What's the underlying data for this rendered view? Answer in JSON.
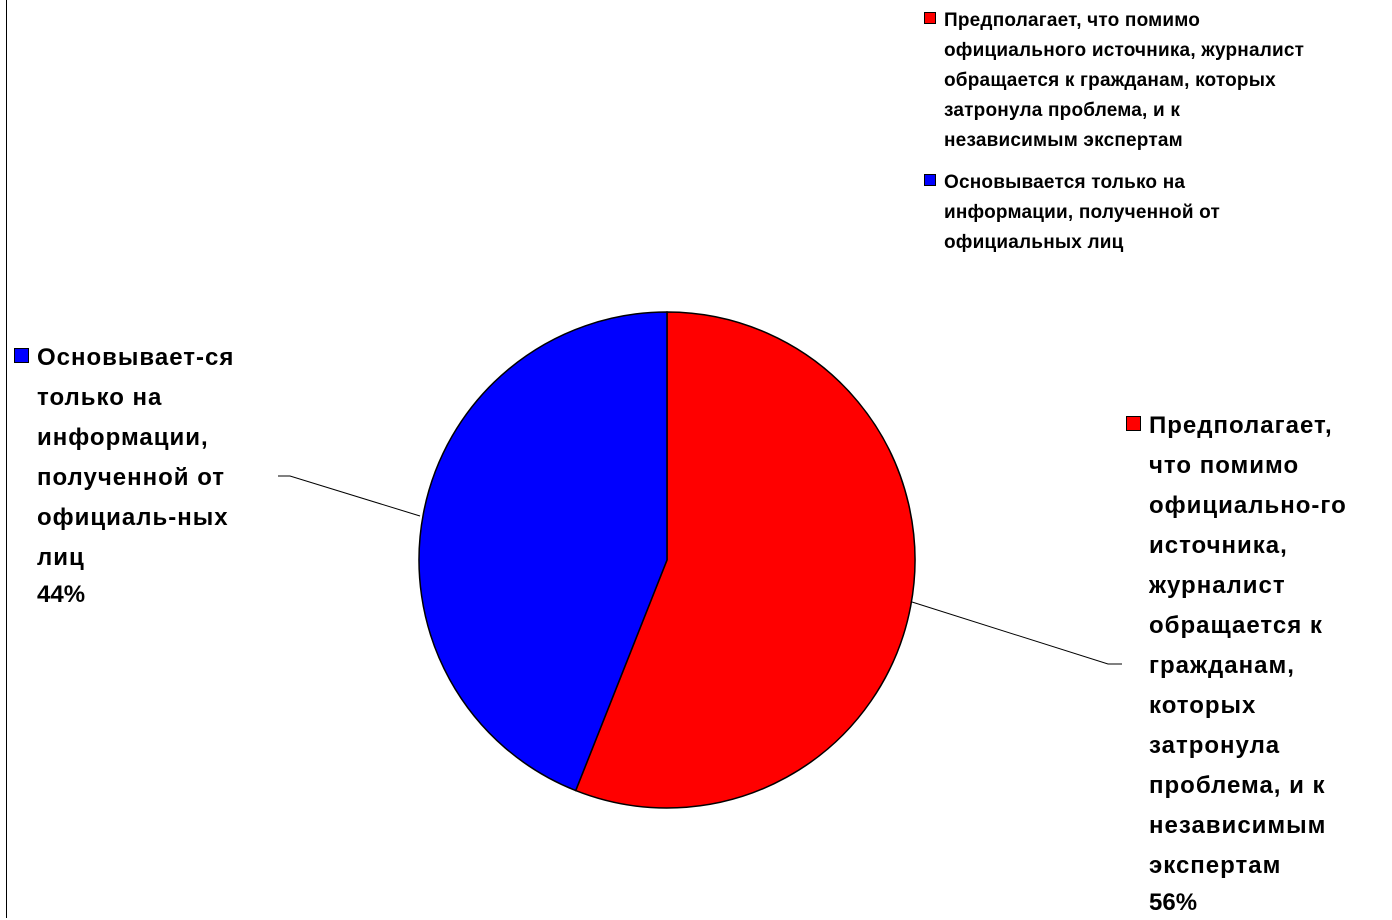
{
  "chart_data": {
    "type": "pie",
    "title": "",
    "slices": [
      {
        "name": "Предполагает, что помимо официального источника, журналист обращается к гражданам, которых затронула проблема, и к независимым экспертам",
        "value": 56,
        "color": "#ff0000",
        "data_label_lines": [
          "Предполагает,",
          "что помимо",
          "официально-го",
          "источника,",
          "журналист",
          "обращается к",
          "гражданам,",
          "которых",
          "затронула",
          "проблема, и к",
          "независимым",
          "экспертам"
        ],
        "percent_label": "56%"
      },
      {
        "name": "Основывается только на информации, полученной от официальных лиц",
        "value": 44,
        "color": "#0000ff",
        "data_label_lines": [
          "Основывает-ся",
          "только на",
          "информации,",
          "полученной от",
          "официаль-ных",
          "лиц"
        ],
        "percent_label": "44%"
      }
    ],
    "legend": {
      "position": "top-right",
      "items": [
        {
          "lines": [
            "Предполагает, что помимо",
            "официального источника, журналист",
            "обращается к гражданам, которых",
            "затронула проблема, и к",
            "независимым экспертам"
          ],
          "color": "#ff0000"
        },
        {
          "lines": [
            "Основывается только на",
            "информации, полученной от",
            "официальных лиц"
          ],
          "color": "#0000ff"
        }
      ]
    }
  }
}
